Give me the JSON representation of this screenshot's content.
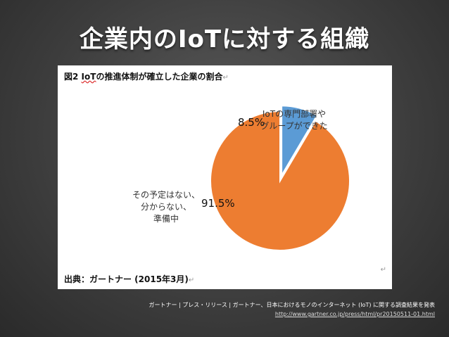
{
  "slide": {
    "title": "企業内のIoTに対する組織",
    "caption": "ガートナー | プレス・リリース | ガートナー、日本におけるモノのインターネット (IoT) に関する調査結果を発表",
    "url": "http://www.gartner.co.jp/press/html/pr20150511-01.html"
  },
  "figure": {
    "heading_prefix": "図2",
    "heading_iot": "IoT",
    "heading_rest": "の推進体制が確立した企業の割合",
    "return_mark": "↵",
    "source": "出典：ガートナー (2015年3月)"
  },
  "chart_data": {
    "type": "pie",
    "slices": [
      {
        "label_lines": [
          "IoTの専門部署や",
          "グループができた"
        ],
        "value": 8.5,
        "value_label": "8.5%",
        "color": "#5b9bd5",
        "exploded": true
      },
      {
        "label_lines": [
          "その予定はない、",
          "分からない、",
          "準備中"
        ],
        "value": 91.5,
        "value_label": "91.5%",
        "color": "#ed7d31",
        "exploded": false
      }
    ]
  }
}
